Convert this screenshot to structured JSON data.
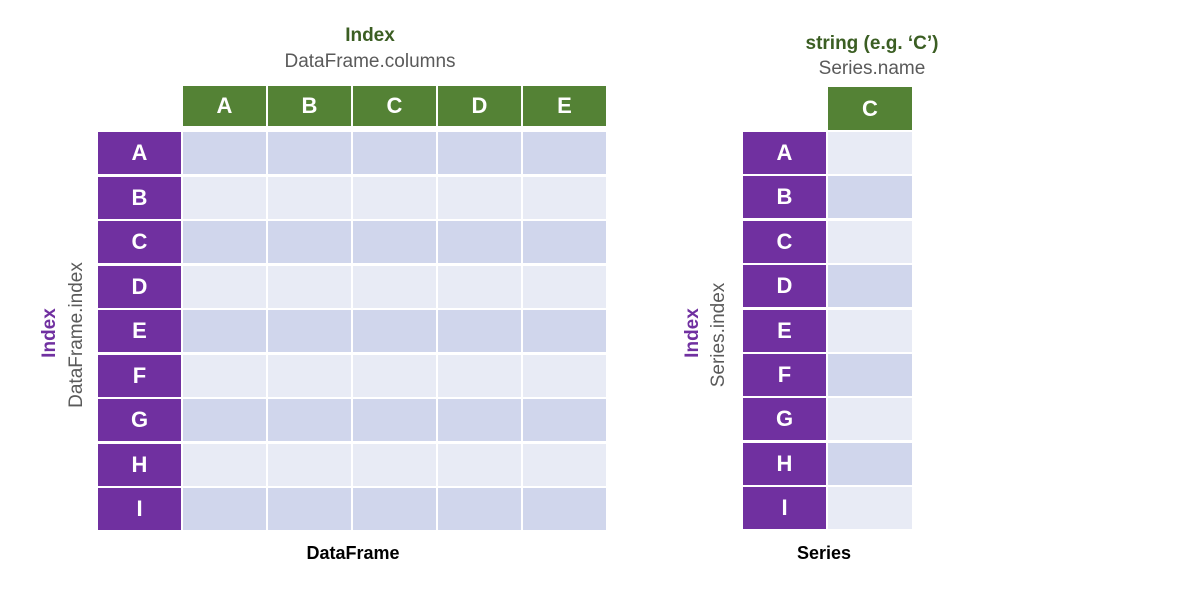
{
  "dataframe": {
    "columns_title": "Index",
    "columns_subtitle": "DataFrame.columns",
    "columns": [
      "A",
      "B",
      "C",
      "D",
      "E"
    ],
    "index_title": "Index",
    "index_subtitle": "DataFrame.index",
    "rows": [
      "A",
      "B",
      "C",
      "D",
      "E",
      "F",
      "G",
      "H",
      "I"
    ],
    "caption": "DataFrame"
  },
  "series": {
    "name_title": "string (e.g. ‘C’)",
    "name_subtitle": "Series.name",
    "name": "C",
    "index_title": "Index",
    "index_subtitle": "Series.index",
    "rows": [
      "A",
      "B",
      "C",
      "D",
      "E",
      "F",
      "G",
      "H",
      "I"
    ],
    "caption": "Series"
  },
  "colors": {
    "column_header": "#548235",
    "row_header": "#7030a0",
    "cell_dark": "#d0d6ec",
    "cell_light": "#e8ebf5"
  }
}
